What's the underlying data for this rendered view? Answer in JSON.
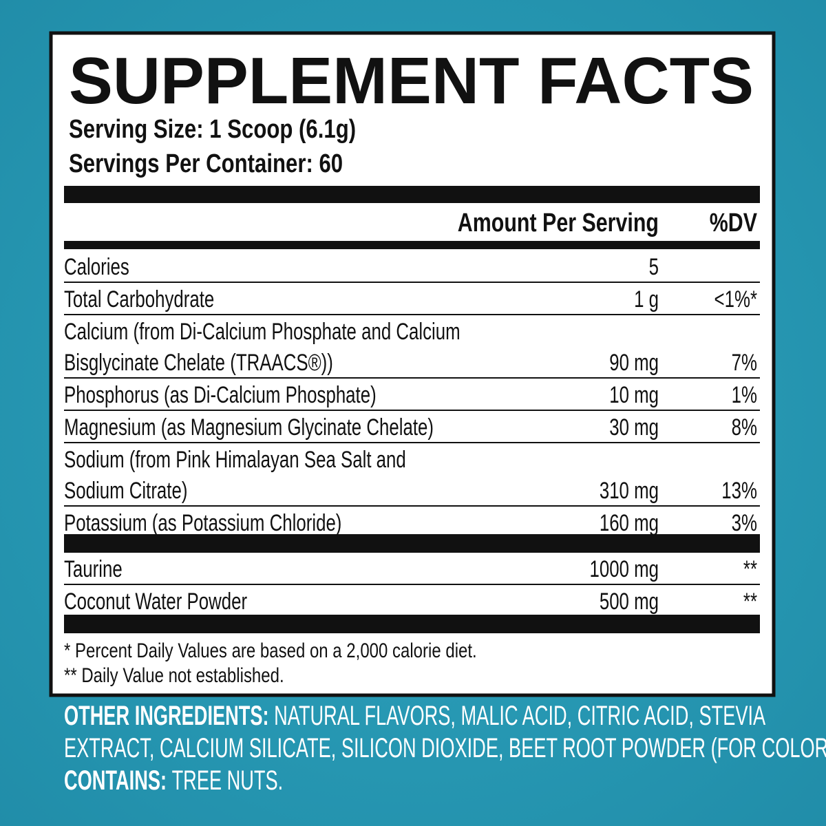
{
  "title": "SUPPLEMENT FACTS",
  "serving_size": "Serving Size: 1 Scoop (6.1g)",
  "servings_per_container": "Servings Per Container: 60",
  "header": {
    "amount": "Amount Per Serving",
    "dv": "%DV"
  },
  "rows": [
    {
      "name": [
        "Calories"
      ],
      "amount": "5"
    },
    {
      "name": [
        "Total Carbohydrate"
      ],
      "amount": "1 g",
      "dv": "<1%*"
    },
    {
      "name": [
        "Calcium (from Di-Calcium Phosphate and Calcium",
        "Bisglycinate Chelate (TRAACS®))"
      ],
      "amount": "90 mg",
      "dv": "7%"
    },
    {
      "name": [
        "Phosphorus (as Di-Calcium Phosphate)"
      ],
      "amount": "10 mg",
      "dv": "1%"
    },
    {
      "name": [
        "Magnesium (as Magnesium Glycinate Chelate)"
      ],
      "amount": "30 mg",
      "dv": "8%"
    },
    {
      "name": [
        "Sodium (from Pink Himalayan Sea Salt and",
        "Sodium Citrate)"
      ],
      "amount": "310 mg",
      "dv": "13%"
    },
    {
      "name": [
        "Potassium (as Potassium Chloride)"
      ],
      "amount": "160 mg",
      "dv": "3%"
    }
  ],
  "other_rows": [
    {
      "name": [
        "Taurine"
      ],
      "amount": "1000 mg",
      "dv": "**"
    },
    {
      "name": [
        "Coconut Water Powder"
      ],
      "amount": "500 mg",
      "dv": "**"
    }
  ],
  "footnotes": [
    "* Percent Daily Values are based on a 2,000 calorie diet.",
    "** Daily Value not established."
  ],
  "other_ingredients": {
    "label": "OTHER INGREDIENTS:",
    "lines": [
      "NATURAL FLAVORS, MALIC ACID, CITRIC ACID, STEVIA",
      "EXTRACT, CALCIUM SILICATE, SILICON DIOXIDE, BEET ROOT POWDER (FOR COLOR)."
    ]
  },
  "contains": {
    "label": "CONTAINS:",
    "text": "TREE NUTS."
  }
}
